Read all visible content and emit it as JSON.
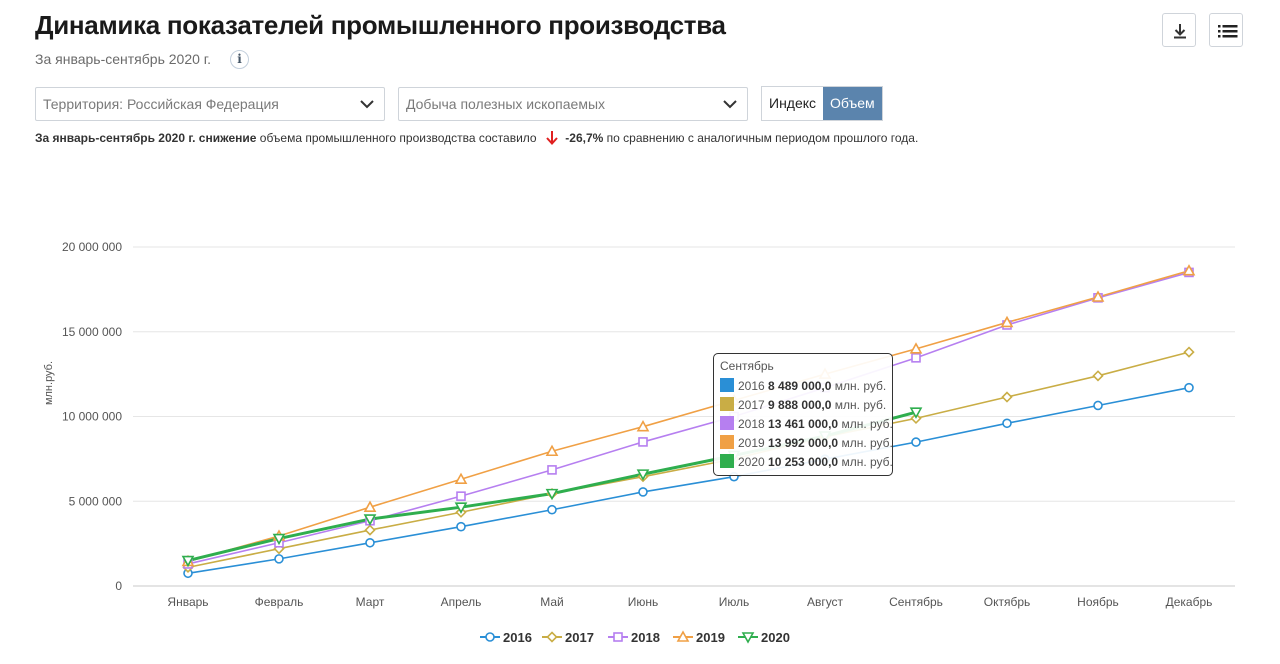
{
  "header": {
    "title": "Динамика показателей промышленного производства",
    "subtitle": "За январь-сентябрь 2020 г.",
    "info_glyph": "i"
  },
  "toolbar": {
    "download_icon": "download-icon",
    "menu_icon": "list-menu-icon"
  },
  "filters": {
    "territory": "Территория: Российская  Федерация",
    "category": "Добыча полезных ископаемых",
    "toggle_index": "Индекс",
    "toggle_volume": "Объем",
    "active": "Объем"
  },
  "summary": {
    "bold_lead": "За январь-сентябрь 2020 г. снижение",
    "text_mid": "объема промышленного производства составило",
    "value": "-26,7%",
    "text_end": "по сравнению с аналогичным периодом прошлого года.",
    "arrow_color": "#e02020"
  },
  "tooltip": {
    "header": "Сентябрь",
    "unit": "млн. руб.",
    "rows": [
      {
        "year": "2016",
        "value": "8 489 000,0",
        "color": "#2a8fd6"
      },
      {
        "year": "2017",
        "value": "9 888 000,0",
        "color": "#c9ad45"
      },
      {
        "year": "2018",
        "value": "13 461 000,0",
        "color": "#b67ff0"
      },
      {
        "year": "2019",
        "value": "13 992 000,0",
        "color": "#f0a045"
      },
      {
        "year": "2020",
        "value": "10 253 000,0",
        "color": "#2fae4e"
      }
    ]
  },
  "chart_data": {
    "type": "line",
    "ylabel": "млн.руб.",
    "ylim": [
      0,
      20000000
    ],
    "yticks": [
      0,
      5000000,
      10000000,
      15000000,
      20000000
    ],
    "ytick_labels": [
      "0",
      "5 000 000",
      "10 000 000",
      "15 000 000",
      "20 000 000"
    ],
    "categories": [
      "Январь",
      "Февраль",
      "Март",
      "Апрель",
      "Май",
      "Июнь",
      "Июль",
      "Август",
      "Сентябрь",
      "Октябрь",
      "Ноябрь",
      "Декабрь"
    ],
    "grid": true,
    "legend_position": "bottom",
    "series": [
      {
        "name": "2016",
        "color": "#2a8fd6",
        "marker": "circle",
        "values": [
          750000,
          1600000,
          2550000,
          3500000,
          4500000,
          5550000,
          6450000,
          7480000,
          8489000,
          9600000,
          10650000,
          11700000
        ]
      },
      {
        "name": "2017",
        "color": "#c9ad45",
        "marker": "diamond",
        "values": [
          1100000,
          2200000,
          3300000,
          4350000,
          5450000,
          6450000,
          7500000,
          8800000,
          9888000,
          11150000,
          12400000,
          13800000
        ]
      },
      {
        "name": "2018",
        "color": "#b67ff0",
        "marker": "square",
        "values": [
          1300000,
          2550000,
          3850000,
          5300000,
          6850000,
          8500000,
          10000000,
          11700000,
          13461000,
          15400000,
          17000000,
          18500000
        ]
      },
      {
        "name": "2019",
        "color": "#f0a045",
        "marker": "triangle",
        "values": [
          1450000,
          2950000,
          4650000,
          6300000,
          7950000,
          9400000,
          10950000,
          12500000,
          13992000,
          15550000,
          17050000,
          18600000
        ]
      },
      {
        "name": "2020",
        "color": "#2fae4e",
        "marker": "triangle-down",
        "thick": true,
        "values": [
          1500000,
          2800000,
          3950000,
          4650000,
          5450000,
          6600000,
          7700000,
          8850000,
          10253000,
          null,
          null,
          null
        ]
      }
    ]
  }
}
